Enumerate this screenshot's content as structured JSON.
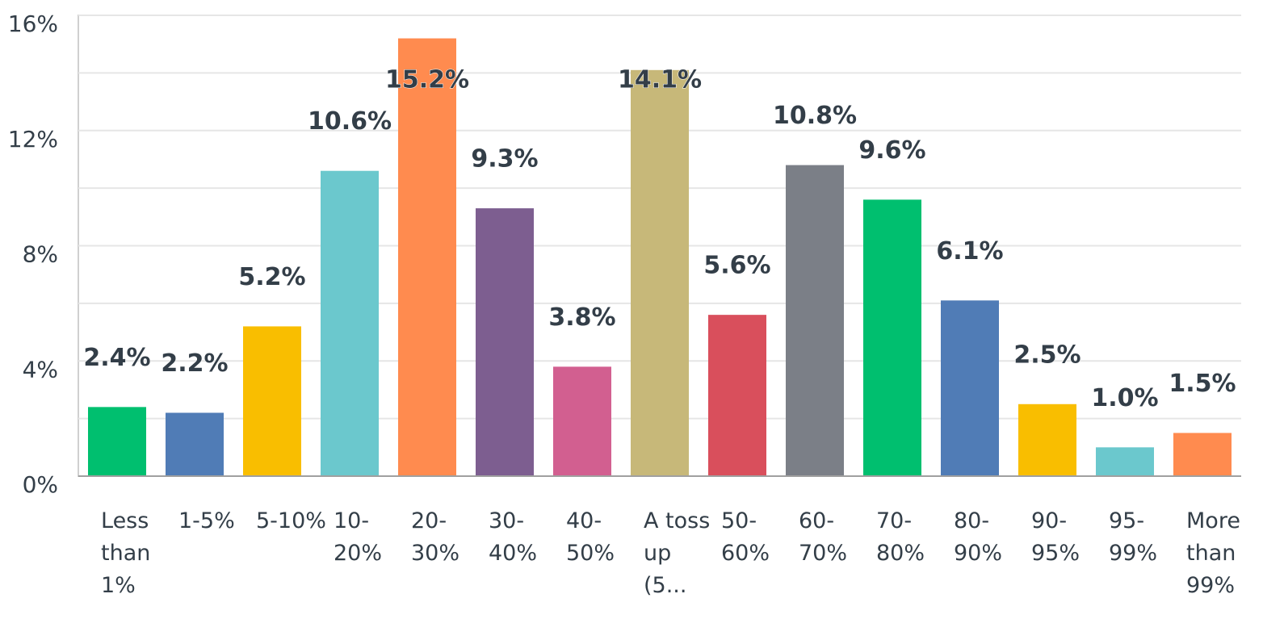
{
  "chart_data": {
    "type": "bar",
    "categories": [
      "Less than 1%",
      "1-5%",
      "5-10%",
      "10-20%",
      "20-30%",
      "30-40%",
      "40-50%",
      "A toss up (5...",
      "50-60%",
      "60-70%",
      "70-80%",
      "80-90%",
      "90-95%",
      "95-99%",
      "More than 99%"
    ],
    "values": [
      2.4,
      2.2,
      5.2,
      10.6,
      15.2,
      9.3,
      3.8,
      14.1,
      5.6,
      10.8,
      9.6,
      6.1,
      2.5,
      1.0,
      1.5
    ],
    "value_labels": [
      "2.4%",
      "2.2%",
      "5.2%",
      "10.6%",
      "15.2%",
      "9.3%",
      "3.8%",
      "14.1%",
      "5.6%",
      "10.8%",
      "9.6%",
      "6.1%",
      "2.5%",
      "1.0%",
      "1.5%"
    ],
    "colors": [
      "#00bf6f",
      "#507cb6",
      "#f9be00",
      "#6bc8cd",
      "#ff8b4f",
      "#7d5e90",
      "#d25f90",
      "#c7b879",
      "#d94f5c",
      "#7b7f87",
      "#00bf6f",
      "#507cb6",
      "#f9be00",
      "#6bc8cd",
      "#ff8b4f"
    ],
    "ylim": [
      0,
      16
    ],
    "yticks": [
      {
        "value": 0,
        "label": "0%"
      },
      {
        "value": 4,
        "label": "4%"
      },
      {
        "value": 8,
        "label": "8%"
      },
      {
        "value": 12,
        "label": "12%"
      },
      {
        "value": 16,
        "label": "16%"
      }
    ],
    "yminor": [
      2,
      6,
      10,
      14
    ],
    "grid": true
  }
}
